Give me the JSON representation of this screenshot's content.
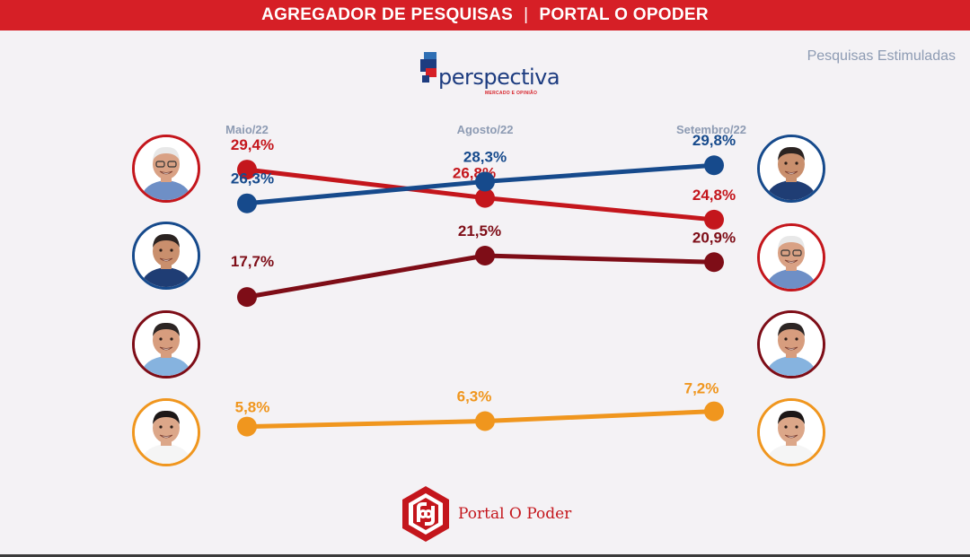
{
  "header": {
    "left": "AGREGADOR DE PESQUISAS",
    "separator": "|",
    "right": "PORTAL O OPODER"
  },
  "subtitle": "Pesquisas Estimuladas",
  "institute": {
    "name": "perspectiva",
    "tagline": "MERCADO E OPINIÃO"
  },
  "footer": {
    "name": "Portal O Poder"
  },
  "chart_data": {
    "type": "line",
    "categories": [
      "Maio/22",
      "Agosto/22",
      "Setembro/22"
    ],
    "ylim": [
      0,
      35
    ],
    "grid": false,
    "legend": "photos",
    "series": [
      {
        "values": [
          29.4,
          26.8,
          24.8
        ],
        "labels": [
          "29,4%",
          "26,8%",
          "24,8%"
        ],
        "color": "#c4161c"
      },
      {
        "values": [
          26.3,
          28.3,
          29.8
        ],
        "labels": [
          "26,3%",
          "28,3%",
          "29,8%"
        ],
        "color": "#164a8c"
      },
      {
        "values": [
          17.7,
          21.5,
          20.9
        ],
        "labels": [
          "17,7%",
          "21,5%",
          "20,9%"
        ],
        "color": "#7e0d17"
      },
      {
        "values": [
          5.8,
          6.3,
          7.2
        ],
        "labels": [
          "5,8%",
          "6,3%",
          "7,2%"
        ],
        "color": "#f0961e"
      }
    ]
  }
}
